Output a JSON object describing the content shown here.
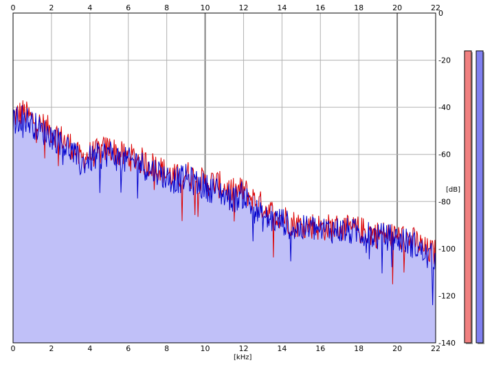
{
  "chart_data": {
    "type": "area",
    "xlabel": "[kHz]",
    "ylabel": "[dB]",
    "xlim": [
      0,
      22
    ],
    "ylim": [
      -140,
      0
    ],
    "x_ticks": [
      0,
      2,
      4,
      6,
      8,
      10,
      12,
      14,
      16,
      18,
      20,
      22
    ],
    "y_ticks": [
      0,
      -20,
      -40,
      -60,
      -80,
      -100,
      -120,
      -140
    ],
    "grid": true,
    "series": [
      {
        "color": "#dd0000",
        "x": [
          0,
          0.5,
          1,
          1.5,
          2,
          2.5,
          3,
          3.5,
          4,
          4.5,
          5,
          5.5,
          6,
          6.5,
          7,
          7.5,
          8,
          8.5,
          9,
          9.5,
          10,
          10.5,
          11,
          11.5,
          12,
          12.5,
          13,
          13.5,
          14,
          14.5,
          15,
          15.5,
          16,
          16.5,
          17,
          17.5,
          18,
          18.5,
          19,
          19.5,
          20,
          20.5,
          21,
          21.5,
          22
        ],
        "values": [
          -44,
          -42,
          -45,
          -48,
          -50,
          -53,
          -56,
          -62,
          -60,
          -59,
          -57,
          -60,
          -61,
          -62,
          -64,
          -65,
          -68,
          -70,
          -68,
          -70,
          -72,
          -72,
          -74,
          -76,
          -75,
          -79,
          -82,
          -85,
          -86,
          -89,
          -90,
          -90,
          -91,
          -91,
          -91,
          -92,
          -92,
          -93,
          -94,
          -94,
          -95,
          -96,
          -97,
          -101,
          -102
        ]
      },
      {
        "color": "#0000cc",
        "x": [
          0,
          0.5,
          1,
          1.5,
          2,
          2.5,
          3,
          3.5,
          4,
          4.5,
          5,
          5.5,
          6,
          6.5,
          7,
          7.5,
          8,
          8.5,
          9,
          9.5,
          10,
          10.5,
          11,
          11.5,
          12,
          12.5,
          13,
          13.5,
          14,
          14.5,
          15,
          15.5,
          16,
          16.5,
          17,
          17.5,
          18,
          18.5,
          19,
          19.5,
          20,
          20.5,
          21,
          21.5,
          22
        ],
        "values": [
          -46,
          -44,
          -47,
          -50,
          -52,
          -55,
          -58,
          -64,
          -62,
          -61,
          -59,
          -62,
          -63,
          -63,
          -66,
          -67,
          -70,
          -71,
          -70,
          -72,
          -74,
          -75,
          -77,
          -79,
          -77,
          -83,
          -87,
          -88,
          -88,
          -91,
          -92,
          -91,
          -92,
          -92,
          -92,
          -93,
          -93,
          -94,
          -95,
          -95,
          -96,
          -97,
          -99,
          -103,
          -104
        ]
      }
    ],
    "fill_color": "#c0c0f8",
    "level_meters": [
      {
        "color": "#f08080",
        "level_db": 0
      },
      {
        "color": "#8080f0",
        "level_db": 0
      }
    ]
  }
}
